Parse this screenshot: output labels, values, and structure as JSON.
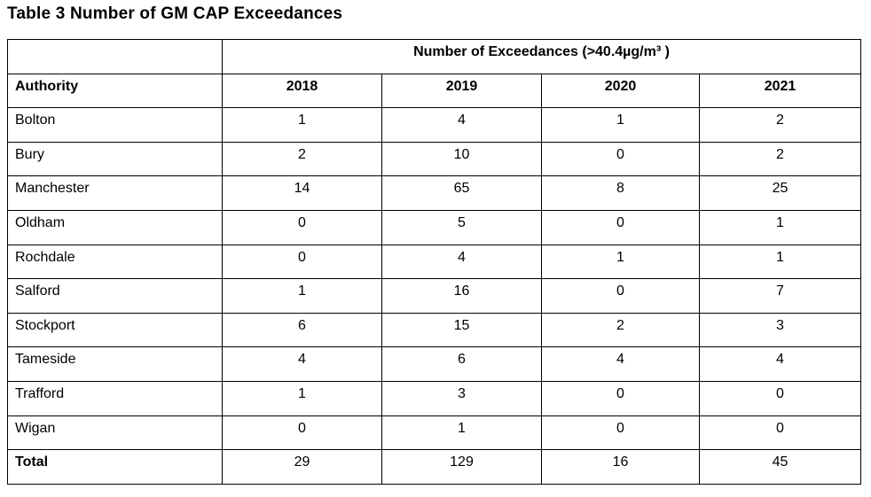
{
  "document": {
    "title": "Table 3 Number of GM CAP Exceedances"
  },
  "table": {
    "spanning_header": "Number of Exceedances (>40.4µg/m³ )",
    "columns": [
      "Authority",
      "2018",
      "2019",
      "2020",
      "2021"
    ],
    "rows": [
      {
        "authority": "Bolton",
        "values": [
          "1",
          "4",
          "1",
          "2"
        ]
      },
      {
        "authority": "Bury",
        "values": [
          "2",
          "10",
          "0",
          "2"
        ]
      },
      {
        "authority": "Manchester",
        "values": [
          "14",
          "65",
          "8",
          "25"
        ]
      },
      {
        "authority": "Oldham",
        "values": [
          "0",
          "5",
          "0",
          "1"
        ]
      },
      {
        "authority": "Rochdale",
        "values": [
          "0",
          "4",
          "1",
          "1"
        ]
      },
      {
        "authority": "Salford",
        "values": [
          "1",
          "16",
          "0",
          "7"
        ]
      },
      {
        "authority": "Stockport",
        "values": [
          "6",
          "15",
          "2",
          "3"
        ]
      },
      {
        "authority": "Tameside",
        "values": [
          "4",
          "6",
          "4",
          "4"
        ]
      },
      {
        "authority": "Trafford",
        "values": [
          "1",
          "3",
          "0",
          "0"
        ]
      },
      {
        "authority": "Wigan",
        "values": [
          "0",
          "1",
          "0",
          "0"
        ]
      }
    ],
    "total_row": {
      "label": "Total",
      "values": [
        "29",
        "129",
        "16",
        "45"
      ]
    }
  },
  "chart_data": {
    "type": "table",
    "title": "Table 3 Number of GM CAP Exceedances",
    "group_header": "Number of Exceedances (>40.4µg/m³)",
    "columns": [
      "Authority",
      "2018",
      "2019",
      "2020",
      "2021"
    ],
    "rows": [
      [
        "Bolton",
        1,
        4,
        1,
        2
      ],
      [
        "Bury",
        2,
        10,
        0,
        2
      ],
      [
        "Manchester",
        14,
        65,
        8,
        25
      ],
      [
        "Oldham",
        0,
        5,
        0,
        1
      ],
      [
        "Rochdale",
        0,
        4,
        1,
        1
      ],
      [
        "Salford",
        1,
        16,
        0,
        7
      ],
      [
        "Stockport",
        6,
        15,
        2,
        3
      ],
      [
        "Tameside",
        4,
        6,
        4,
        4
      ],
      [
        "Trafford",
        1,
        3,
        0,
        0
      ],
      [
        "Wigan",
        0,
        1,
        0,
        0
      ],
      [
        "Total",
        29,
        129,
        16,
        45
      ]
    ],
    "colors": {
      "text": "#000000",
      "border": "#000000",
      "background": "#ffffff"
    }
  }
}
